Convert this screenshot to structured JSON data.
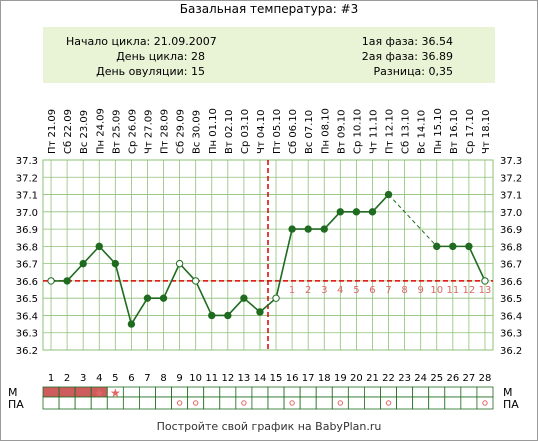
{
  "title": "Базальная температура: #3",
  "summary": {
    "cycle_start": "Начало цикла: 21.09.2007",
    "cycle_day": "День цикла: 28",
    "ovulation_day": "День овуляции: 15",
    "phase1": "1ая фаза: 36.54",
    "phase2": "2ая фаза: 36.89",
    "difference": "Разница: 0,35"
  },
  "footer": "Постройте свой график на BabyPlan.ru",
  "row_labels": {
    "m": "М",
    "pa": "ПА"
  },
  "colors": {
    "line": "#1f6b1f",
    "marker": "#1f6b1f",
    "grid": "#8fc07a",
    "ref": "#dd0000",
    "phase_num": "#e06666",
    "menses": "#cd5c5c",
    "summary_bg": "#e9f3d6"
  },
  "chart_data": {
    "type": "line",
    "title": "Базальная температура: #3",
    "ylim": [
      36.2,
      37.3
    ],
    "y_ticks": [
      "36.2",
      "36.3",
      "36.4",
      "36.5",
      "36.6",
      "36.7",
      "36.8",
      "36.9",
      "37.0",
      "37.1",
      "37.2",
      "37.3"
    ],
    "days": [
      "1",
      "2",
      "3",
      "4",
      "5",
      "6",
      "7",
      "8",
      "9",
      "10",
      "11",
      "12",
      "13",
      "14",
      "15",
      "16",
      "17",
      "18",
      "19",
      "20",
      "21",
      "22",
      "23",
      "24",
      "25",
      "26",
      "27",
      "28"
    ],
    "dates": [
      "Пт 21.09",
      "Сб 22.09",
      "Вс 23.09",
      "Пн 24.09",
      "Вт 25.09",
      "Ср 26.09",
      "Чт 27.09",
      "Пт 28.09",
      "Сб 29.09",
      "Вс 30.09",
      "Пн 01.10",
      "Вт 02.10",
      "Ср 03.10",
      "Чт 04.10",
      "Пт 05.10",
      "Сб 06.10",
      "Вс 07.10",
      "Пн 08.10",
      "Вт 09.10",
      "Ср 10.10",
      "Чт 11.10",
      "Пт 12.10",
      "Сб 13.10",
      "Вс 14.10",
      "Пн 15.10",
      "Вт 16.10",
      "Ср 17.10",
      "Чт 18.10"
    ],
    "values": [
      36.6,
      36.6,
      36.7,
      36.8,
      36.7,
      36.35,
      36.5,
      36.5,
      36.7,
      36.6,
      36.4,
      36.4,
      36.5,
      36.42,
      36.5,
      36.9,
      36.9,
      36.9,
      37.0,
      37.0,
      37.0,
      37.1,
      null,
      null,
      36.8,
      36.8,
      36.8,
      36.6
    ],
    "hollow_points": [
      1,
      9,
      10,
      15,
      28
    ],
    "dashed_gap": [
      22,
      25
    ],
    "coverline": 36.6,
    "ovulation_line_day": 15,
    "luteal_day_numbers": [
      "1",
      "2",
      "3",
      "4",
      "5",
      "6",
      "7",
      "8",
      "9",
      "10",
      "11",
      "12",
      "13"
    ],
    "menses_days": [
      1,
      2,
      3,
      4
    ],
    "menses_star_days": [
      4,
      5
    ],
    "pa_days": [
      9,
      10,
      13,
      16,
      19,
      22,
      28
    ]
  }
}
